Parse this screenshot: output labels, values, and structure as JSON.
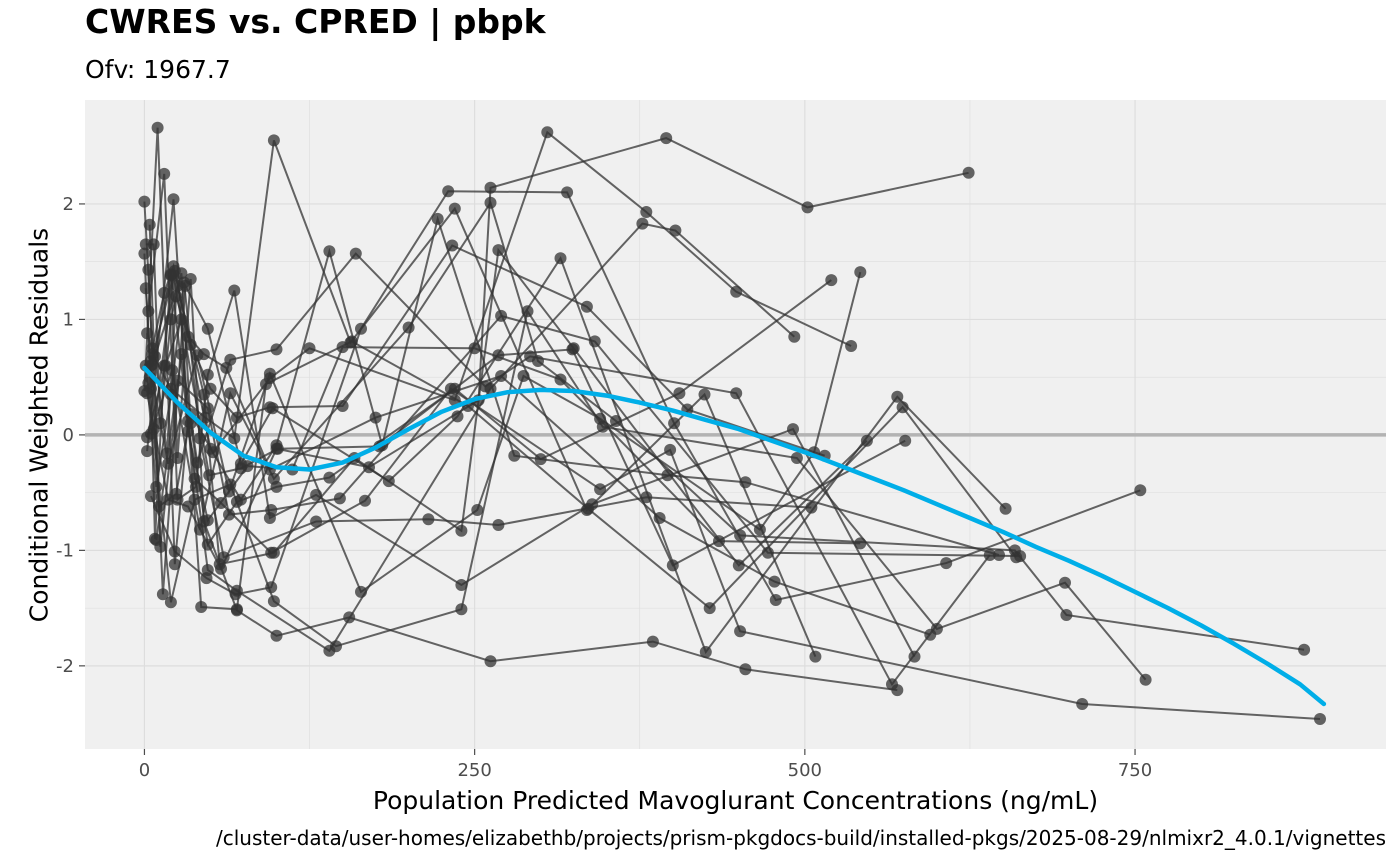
{
  "chart_data": {
    "type": "scatter",
    "title": "CWRES vs. CPRED | pbpk",
    "subtitle": "Ofv: 1967.7",
    "xlabel": "Population Predicted Mavoglurant Concentrations (ng/mL)",
    "ylabel": "Conditional Weighted Residuals",
    "caption": "/cluster-data/user-homes/elizabethb/projects/prism-pkgdocs-build/installed-pkgs/2025-08-29/nlmixr2_4.0.1/vignettes",
    "xlim": [
      -45,
      940
    ],
    "ylim": [
      -2.72,
      2.9
    ],
    "x_ticks": [
      0,
      250,
      500,
      750
    ],
    "y_ticks": [
      -2,
      -1,
      0,
      1,
      2
    ],
    "x_tick_labels": [
      "0",
      "250",
      "500",
      "750"
    ],
    "y_tick_labels": [
      "-2",
      "-1",
      "0",
      "1",
      "2"
    ],
    "reference_line_y": 0,
    "grid": true,
    "colors": {
      "panel": "#f0f0f0",
      "grid": "#dddddd",
      "reference": "#b3b3b3",
      "points": "#333333",
      "smooth": "#00aee8"
    },
    "series": [
      {
        "values": [
          [
            0,
            1.57
          ],
          [
            5,
            0.4
          ],
          [
            8,
            -0.9
          ],
          [
            15,
            0.6
          ],
          [
            20,
            1.38
          ],
          [
            25,
            -0.2
          ],
          [
            35,
            1.35
          ],
          [
            45,
            -0.75
          ],
          [
            70,
            -1.52
          ],
          [
            100,
            -1.74
          ],
          [
            155,
            -1.58
          ],
          [
            262,
            -1.96
          ],
          [
            385,
            -1.79
          ],
          [
            455,
            -2.03
          ],
          [
            570,
            -2.21
          ]
        ]
      },
      {
        "values": [
          [
            1,
            1.65
          ],
          [
            7,
            1.65
          ],
          [
            12,
            0.1
          ],
          [
            20,
            1.0
          ],
          [
            28,
            1.4
          ],
          [
            35,
            0.1
          ],
          [
            48,
            -0.95
          ],
          [
            70,
            -0.58
          ],
          [
            100,
            -0.45
          ],
          [
            140,
            -0.37
          ],
          [
            235,
            0.4
          ],
          [
            300,
            -0.21
          ],
          [
            405,
            0.36
          ],
          [
            520,
            1.34
          ]
        ]
      },
      {
        "values": [
          [
            2,
            0.88
          ],
          [
            8,
            0.68
          ],
          [
            17,
            -0.16
          ],
          [
            24,
            1.2
          ],
          [
            33,
            0.85
          ],
          [
            45,
            0.7
          ],
          [
            62,
            0.58
          ],
          [
            95,
            -0.3
          ],
          [
            175,
            0.15
          ],
          [
            270,
            0.51
          ],
          [
            390,
            -0.72
          ],
          [
            477,
            -1.27
          ],
          [
            595,
            -1.73
          ]
        ]
      },
      {
        "values": [
          [
            0,
            2.02
          ],
          [
            6,
            0.75
          ],
          [
            15,
            1.23
          ],
          [
            22,
            1.46
          ],
          [
            35,
            0.78
          ],
          [
            50,
            0.4
          ],
          [
            70,
            0.15
          ],
          [
            95,
            0.24
          ],
          [
            150,
            0.25
          ],
          [
            233,
            1.64
          ],
          [
            335,
            1.11
          ],
          [
            411,
            0.22
          ],
          [
            515,
            -0.18
          ]
        ]
      },
      {
        "values": [
          [
            1,
            0.6
          ],
          [
            9,
            -0.45
          ],
          [
            20,
            0.35
          ],
          [
            30,
            1.32
          ],
          [
            42,
            -0.03
          ],
          [
            60,
            -1.06
          ],
          [
            130,
            -0.75
          ],
          [
            215,
            -0.73
          ],
          [
            268,
            -0.78
          ],
          [
            380,
            -0.54
          ],
          [
            505,
            -0.63
          ]
        ]
      },
      {
        "values": [
          [
            0,
            0.38
          ],
          [
            10,
            2.66
          ],
          [
            23,
            -1.12
          ],
          [
            33,
            0.12
          ],
          [
            48,
            -1.17
          ],
          [
            70,
            -1.35
          ],
          [
            140,
            -1.87
          ],
          [
            262,
            0.4
          ],
          [
            377,
            1.83
          ],
          [
            402,
            1.77
          ],
          [
            492,
            0.85
          ]
        ]
      },
      {
        "values": [
          [
            3,
            1.07
          ],
          [
            15,
            2.26
          ],
          [
            25,
            -0.56
          ],
          [
            39,
            -0.45
          ],
          [
            48,
            0.52
          ],
          [
            68,
            1.25
          ],
          [
            95,
            -0.72
          ],
          [
            130,
            -0.52
          ],
          [
            240,
            -1.3
          ],
          [
            339,
            -0.6
          ],
          [
            491,
            0.05
          ],
          [
            583,
            -1.92
          ]
        ]
      },
      {
        "values": [
          [
            2,
            -0.14
          ],
          [
            22,
            2.04
          ],
          [
            33,
            0.03
          ],
          [
            48,
            -0.74
          ],
          [
            78,
            -0.27
          ],
          [
            112,
            -0.3
          ],
          [
            150,
            0.76
          ],
          [
            250,
            0.75
          ],
          [
            315,
            0.48
          ],
          [
            435,
            -0.92
          ],
          [
            542,
            -0.94
          ]
        ]
      },
      {
        "values": [
          [
            1,
            1.27
          ],
          [
            11,
            -0.62
          ],
          [
            24,
            -0.51
          ],
          [
            35,
            0.18
          ],
          [
            52,
            -0.15
          ],
          [
            95,
            0.49
          ],
          [
            125,
            0.75
          ],
          [
            235,
            0.3
          ],
          [
            305,
            2.62
          ],
          [
            380,
            1.93
          ],
          [
            448,
            1.24
          ],
          [
            535,
            0.77
          ]
        ]
      },
      {
        "values": [
          [
            4,
            1.82
          ],
          [
            12,
            -0.97
          ],
          [
            28,
            0.7
          ],
          [
            40,
            -0.24
          ],
          [
            65,
            0.65
          ],
          [
            100,
            0.74
          ],
          [
            160,
            1.57
          ],
          [
            258,
            0.42
          ],
          [
            292,
            0.68
          ],
          [
            448,
            0.36
          ],
          [
            566,
            -2.16
          ],
          [
            640,
            -1.04
          ]
        ]
      },
      {
        "values": [
          [
            2,
            -0.02
          ],
          [
            16,
            0.6
          ],
          [
            28,
            1.0
          ],
          [
            43,
            -1.49
          ],
          [
            70,
            -1.51
          ],
          [
            92,
            0.44
          ],
          [
            157,
            0.81
          ],
          [
            245,
            0.25
          ],
          [
            336,
            -0.64
          ],
          [
            428,
            -1.5
          ],
          [
            574,
            0.24
          ],
          [
            660,
            -1.06
          ]
        ]
      },
      {
        "values": [
          [
            3,
            1.43
          ],
          [
            14,
            -1.38
          ],
          [
            31,
            1.29
          ],
          [
            48,
            0.92
          ],
          [
            73,
            -0.25
          ],
          [
            97,
            0.23
          ],
          [
            185,
            -0.4
          ],
          [
            237,
            0.16
          ],
          [
            315,
            1.53
          ],
          [
            425,
            -1.88
          ],
          [
            570,
            0.33
          ],
          [
            652,
            -0.64
          ]
        ]
      },
      {
        "values": [
          [
            2,
            0.36
          ],
          [
            18,
            -0.56
          ],
          [
            33,
            -0.62
          ],
          [
            58,
            -1.16
          ],
          [
            100,
            -0.12
          ],
          [
            170,
            -0.28
          ],
          [
            253,
            0.3
          ],
          [
            262,
            2.14
          ],
          [
            395,
            2.57
          ],
          [
            502,
            1.97
          ],
          [
            624,
            2.27
          ]
        ]
      },
      {
        "values": [
          [
            4,
            0.5
          ],
          [
            20,
            1.39
          ],
          [
            38,
            -0.38
          ],
          [
            58,
            -0.59
          ],
          [
            96,
            -1.02
          ],
          [
            167,
            -0.57
          ],
          [
            232,
            0.4
          ],
          [
            345,
            -0.47
          ],
          [
            398,
            -0.13
          ],
          [
            451,
            -1.7
          ],
          [
            710,
            -2.33
          ],
          [
            890,
            -2.46
          ]
        ]
      },
      {
        "values": [
          [
            3,
            0.45
          ],
          [
            20,
            -1.45
          ],
          [
            38,
            -0.56
          ],
          [
            65,
            -0.43
          ],
          [
            98,
            -1.44
          ],
          [
            145,
            -1.83
          ],
          [
            240,
            -1.51
          ],
          [
            290,
            1.07
          ],
          [
            347,
            0.07
          ],
          [
            494,
            -0.2
          ],
          [
            600,
            -1.68
          ],
          [
            697,
            -1.28
          ],
          [
            758,
            -2.12
          ]
        ]
      },
      {
        "values": [
          [
            4,
            0.59
          ],
          [
            18,
            -0.25
          ],
          [
            40,
            0.69
          ],
          [
            64,
            -0.49
          ],
          [
            95,
            0.53
          ],
          [
            164,
            -1.36
          ],
          [
            252,
            -0.65
          ],
          [
            287,
            0.51
          ],
          [
            345,
            0.14
          ],
          [
            466,
            -0.82
          ],
          [
            507,
            -0.15
          ],
          [
            542,
            1.41
          ]
        ]
      },
      {
        "values": [
          [
            5,
            0.01
          ],
          [
            21,
            0.56
          ],
          [
            42,
            -0.82
          ],
          [
            65,
            0.36
          ],
          [
            98,
            -0.38
          ],
          [
            200,
            0.93
          ],
          [
            262,
            2.01
          ],
          [
            298,
            0.64
          ],
          [
            357,
            0.12
          ],
          [
            451,
            -0.87
          ],
          [
            659,
            -1.0
          ],
          [
            698,
            -1.56
          ],
          [
            878,
            -1.86
          ]
        ]
      },
      {
        "values": [
          [
            5,
            -0.53
          ],
          [
            23,
            -1.01
          ],
          [
            47,
            -1.24
          ],
          [
            69,
            -1.38
          ],
          [
            96,
            -1.32
          ],
          [
            164,
            0.92
          ],
          [
            230,
            2.11
          ],
          [
            320,
            2.1
          ],
          [
            401,
            0.1
          ],
          [
            478,
            -1.43
          ],
          [
            607,
            -1.11
          ],
          [
            754,
            -0.48
          ]
        ]
      },
      {
        "values": [
          [
            6,
            0.7
          ],
          [
            20,
            0.4
          ],
          [
            46,
            0.15
          ],
          [
            68,
            -0.03
          ],
          [
            98,
            2.55
          ],
          [
            156,
            0.8
          ],
          [
            235,
            1.96
          ],
          [
            335,
            -0.65
          ],
          [
            424,
            0.35
          ],
          [
            508,
            -1.92
          ]
        ]
      },
      {
        "values": [
          [
            5,
            0.64
          ],
          [
            23,
            1.42
          ],
          [
            50,
            -0.12
          ],
          [
            73,
            -0.56
          ],
          [
            100,
            -0.09
          ],
          [
            140,
            1.59
          ],
          [
            180,
            -0.09
          ],
          [
            222,
            1.87
          ],
          [
            280,
            -0.18
          ],
          [
            396,
            -0.35
          ],
          [
            455,
            -0.41
          ],
          [
            647,
            -1.04
          ]
        ]
      },
      {
        "values": [
          [
            6,
            0.61
          ],
          [
            25,
            1.29
          ],
          [
            45,
            0.35
          ],
          [
            57,
            -1.12
          ],
          [
            98,
            -1.02
          ],
          [
            159,
            -0.2
          ],
          [
            240,
            -0.83
          ],
          [
            268,
            1.6
          ],
          [
            325,
            0.75
          ],
          [
            450,
            -1.13
          ],
          [
            547,
            -0.05
          ]
        ]
      },
      {
        "values": [
          [
            7,
            0.05
          ],
          [
            22,
            1.38
          ],
          [
            49,
            -0.35
          ],
          [
            73,
            -0.29
          ],
          [
            101,
            -0.12
          ],
          [
            178,
            -0.1
          ],
          [
            268,
            0.69
          ],
          [
            324,
            0.74
          ],
          [
            400,
            -1.13
          ],
          [
            576,
            -0.05
          ]
        ]
      },
      {
        "values": [
          [
            9,
            -0.91
          ],
          [
            25,
            0.47
          ],
          [
            48,
            0.23
          ],
          [
            64,
            -0.69
          ],
          [
            96,
            -0.65
          ],
          [
            148,
            -0.55
          ],
          [
            270,
            1.03
          ],
          [
            341,
            0.81
          ],
          [
            472,
            -1.02
          ],
          [
            663,
            -1.05
          ]
        ]
      }
    ],
    "smooth": {
      "x": [
        0,
        25,
        50,
        75,
        100,
        125,
        150,
        175,
        200,
        225,
        250,
        275,
        300,
        325,
        350,
        375,
        400,
        425,
        450,
        475,
        500,
        525,
        550,
        575,
        600,
        625,
        650,
        675,
        700,
        725,
        750,
        775,
        800,
        825,
        850,
        875,
        893
      ],
      "y": [
        0.58,
        0.28,
        0.02,
        -0.18,
        -0.28,
        -0.3,
        -0.24,
        -0.11,
        0.05,
        0.2,
        0.31,
        0.37,
        0.39,
        0.38,
        0.34,
        0.28,
        0.21,
        0.13,
        0.05,
        -0.05,
        -0.15,
        -0.26,
        -0.37,
        -0.48,
        -0.6,
        -0.72,
        -0.84,
        -0.97,
        -1.09,
        -1.22,
        -1.36,
        -1.5,
        -1.65,
        -1.81,
        -1.98,
        -2.16,
        -2.33
      ]
    }
  }
}
